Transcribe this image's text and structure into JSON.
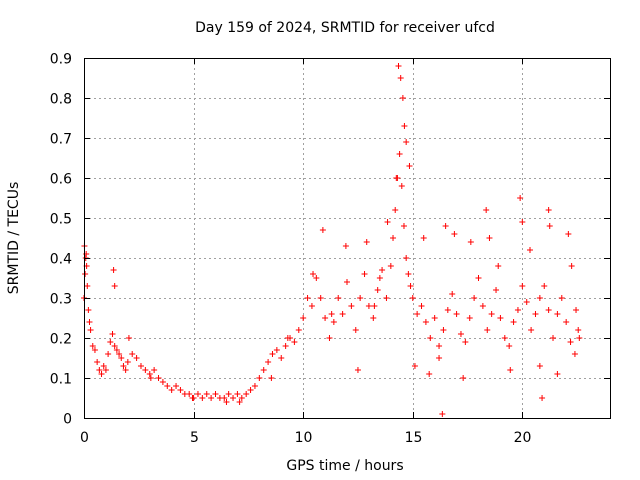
{
  "chart_data": {
    "type": "scatter",
    "title": "Day 159 of 2024, SRMTID for receiver ufcd",
    "xlabel": "GPS time / hours",
    "ylabel": "SRMTID / TECUs",
    "xlim": [
      0,
      24
    ],
    "ylim": [
      0,
      0.9
    ],
    "xticks": [
      0,
      5,
      10,
      15,
      20
    ],
    "xtick_labels": [
      "0",
      "5",
      "10",
      "15",
      "20"
    ],
    "yticks": [
      0,
      0.1,
      0.2,
      0.3,
      0.4,
      0.5,
      0.6,
      0.7,
      0.8,
      0.9
    ],
    "ytick_labels": [
      "0",
      "0.1",
      "0.2",
      "0.3",
      "0.4",
      "0.5",
      "0.6",
      "0.7",
      "0.8",
      "0.9"
    ],
    "grid": true,
    "marker": "+",
    "marker_color": "#ff0000",
    "series": [
      {
        "name": "SRMTID",
        "x": [
          0.0,
          0.05,
          0.1,
          0.15,
          0.2,
          0.25,
          0.3,
          0.4,
          0.5,
          0.6,
          0.7,
          0.8,
          0.9,
          1.0,
          1.1,
          1.2,
          1.3,
          1.4,
          1.5,
          1.6,
          1.7,
          1.8,
          1.9,
          2.0,
          2.2,
          2.4,
          2.6,
          2.8,
          3.0,
          3.2,
          3.4,
          3.6,
          3.8,
          4.0,
          4.2,
          4.4,
          4.6,
          4.8,
          5.0,
          5.2,
          5.4,
          5.6,
          5.8,
          6.0,
          6.2,
          6.4,
          6.6,
          6.8,
          7.0,
          7.2,
          7.4,
          7.6,
          7.8,
          8.0,
          8.2,
          8.4,
          8.6,
          8.8,
          9.0,
          9.2,
          9.4,
          9.6,
          9.8,
          10.0,
          10.2,
          10.4,
          10.6,
          10.8,
          11.0,
          11.2,
          11.4,
          11.6,
          11.8,
          12.0,
          12.2,
          12.4,
          12.6,
          12.8,
          13.0,
          13.2,
          13.4,
          13.6,
          13.8,
          14.0,
          14.1,
          14.2,
          14.3,
          14.4,
          14.5,
          14.6,
          14.7,
          14.8,
          14.9,
          15.0,
          15.2,
          15.4,
          15.6,
          15.8,
          16.0,
          16.2,
          16.4,
          16.6,
          16.8,
          17.0,
          17.2,
          17.4,
          17.6,
          17.8,
          18.0,
          18.2,
          18.4,
          18.6,
          18.8,
          19.0,
          19.2,
          19.4,
          19.6,
          19.8,
          20.0,
          20.2,
          20.4,
          20.6,
          20.8,
          21.0,
          21.2,
          21.4,
          21.6,
          21.8,
          22.0,
          22.2,
          22.4,
          22.6,
          0.02,
          0.08,
          0.12,
          1.35,
          1.4,
          2.05,
          3.05,
          4.95,
          6.5,
          7.1,
          8.55,
          9.3,
          10.45,
          10.9,
          11.3,
          11.95,
          12.5,
          12.9,
          13.25,
          13.5,
          13.85,
          14.25,
          14.35,
          14.45,
          14.55,
          14.62,
          14.7,
          14.85,
          15.1,
          15.5,
          15.75,
          16.2,
          16.35,
          16.5,
          16.9,
          17.3,
          17.65,
          18.35,
          18.5,
          18.9,
          19.45,
          19.9,
          20.0,
          20.35,
          20.8,
          20.9,
          21.2,
          21.25,
          21.6,
          22.1,
          22.25,
          22.45,
          22.55
        ],
        "y": [
          0.3,
          0.36,
          0.41,
          0.33,
          0.27,
          0.24,
          0.22,
          0.18,
          0.17,
          0.14,
          0.12,
          0.11,
          0.13,
          0.12,
          0.16,
          0.19,
          0.21,
          0.18,
          0.17,
          0.16,
          0.15,
          0.13,
          0.12,
          0.14,
          0.16,
          0.15,
          0.13,
          0.12,
          0.11,
          0.12,
          0.1,
          0.09,
          0.08,
          0.07,
          0.08,
          0.07,
          0.06,
          0.06,
          0.05,
          0.06,
          0.05,
          0.06,
          0.05,
          0.06,
          0.05,
          0.05,
          0.06,
          0.05,
          0.06,
          0.05,
          0.06,
          0.07,
          0.08,
          0.1,
          0.12,
          0.14,
          0.16,
          0.17,
          0.15,
          0.18,
          0.2,
          0.19,
          0.22,
          0.25,
          0.3,
          0.28,
          0.35,
          0.3,
          0.25,
          0.2,
          0.24,
          0.3,
          0.26,
          0.34,
          0.28,
          0.22,
          0.3,
          0.36,
          0.28,
          0.25,
          0.32,
          0.37,
          0.3,
          0.38,
          0.45,
          0.52,
          0.6,
          0.66,
          0.58,
          0.48,
          0.4,
          0.36,
          0.33,
          0.3,
          0.26,
          0.28,
          0.24,
          0.2,
          0.25,
          0.18,
          0.22,
          0.27,
          0.31,
          0.26,
          0.21,
          0.19,
          0.25,
          0.3,
          0.35,
          0.28,
          0.22,
          0.26,
          0.32,
          0.25,
          0.2,
          0.18,
          0.24,
          0.27,
          0.33,
          0.29,
          0.22,
          0.26,
          0.3,
          0.33,
          0.27,
          0.2,
          0.26,
          0.3,
          0.24,
          0.19,
          0.16,
          0.2,
          0.43,
          0.4,
          0.38,
          0.37,
          0.33,
          0.2,
          0.1,
          0.05,
          0.04,
          0.04,
          0.1,
          0.2,
          0.36,
          0.47,
          0.26,
          0.43,
          0.12,
          0.44,
          0.28,
          0.35,
          0.49,
          0.6,
          0.88,
          0.85,
          0.8,
          0.73,
          0.69,
          0.63,
          0.13,
          0.45,
          0.11,
          0.15,
          0.01,
          0.48,
          0.46,
          0.1,
          0.44,
          0.52,
          0.45,
          0.38,
          0.12,
          0.55,
          0.49,
          0.42,
          0.13,
          0.05,
          0.52,
          0.48,
          0.11,
          0.46,
          0.38,
          0.27,
          0.22
        ]
      }
    ]
  }
}
